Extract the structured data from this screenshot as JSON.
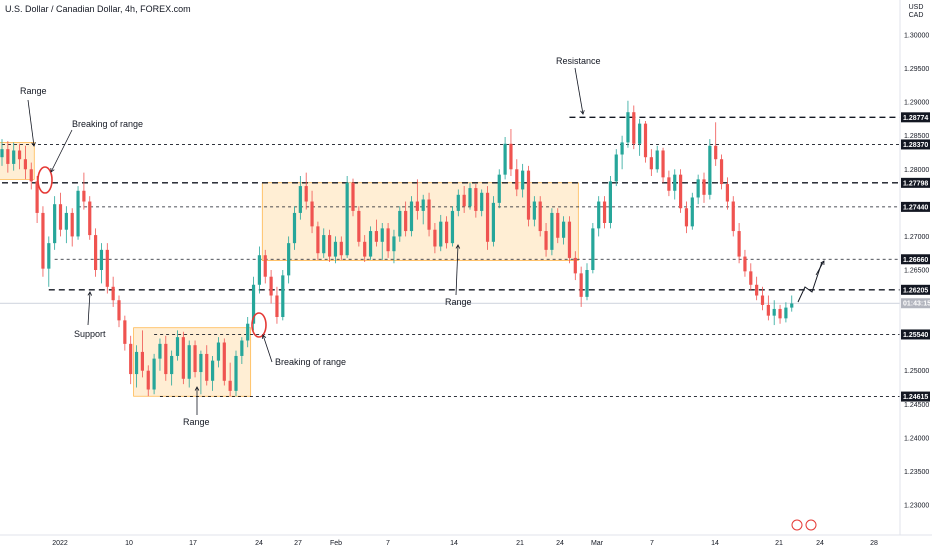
{
  "chart_title": "U.S. Dollar / Canadian Dollar, 4h, FOREX.com",
  "currency_badge": {
    "top": "USD",
    "bottom": "CAD"
  },
  "price_now_label": "01:43:15",
  "chart_data": {
    "type": "candlestick",
    "symbol": "USDCAD",
    "timeframe": "4h",
    "x_labels": [
      "2022",
      "10",
      "17",
      "24",
      "27",
      "Feb",
      "7",
      "14",
      "21",
      "24",
      "Mar",
      "7",
      "14",
      "21",
      "24",
      "28"
    ],
    "y_ticks": [
      "1.30000",
      "1.29500",
      "1.29000",
      "1.28500",
      "1.28000",
      "1.27500",
      "1.27000",
      "1.26500",
      "1.26000",
      "1.25500",
      "1.25000",
      "1.24500",
      "1.24000",
      "1.23500",
      "1.23000"
    ],
    "ylim": [
      1.2265,
      1.3054
    ],
    "current_price": 1.26005,
    "levels": [
      {
        "value": 1.28774,
        "label": "1.28774",
        "style": "dashed-bold"
      },
      {
        "value": 1.2837,
        "label": "1.28370",
        "style": "dashed"
      },
      {
        "value": 1.27798,
        "label": "1.27798",
        "style": "dashed-bold"
      },
      {
        "value": 1.2744,
        "label": "1.27440",
        "style": "dashed"
      },
      {
        "value": 1.2666,
        "label": "1.26660",
        "style": "dashed"
      },
      {
        "value": 1.26205,
        "label": "1.26205",
        "style": "dashed-bold"
      },
      {
        "value": 1.2554,
        "label": "1.25540",
        "style": "dashed"
      },
      {
        "value": 1.24615,
        "label": "1.24615",
        "style": "dashed"
      }
    ],
    "range_zones": [
      {
        "x_start": 0,
        "x_end": 5,
        "low": 1.2785,
        "high": 1.284
      },
      {
        "x_start": 23,
        "x_end": 42,
        "low": 1.2462,
        "high": 1.2564
      },
      {
        "x_start": 45,
        "x_end": 98,
        "low": 1.2664,
        "high": 1.278
      }
    ],
    "annotations": [
      {
        "text": "Range"
      },
      {
        "text": "Breaking of range"
      },
      {
        "text": "Support"
      },
      {
        "text": "Range"
      },
      {
        "text": "Breaking of range"
      },
      {
        "text": "Range"
      },
      {
        "text": "Resistance"
      }
    ],
    "series": [
      {
        "x": 0,
        "o": 1.2818,
        "h": 1.2845,
        "l": 1.2805,
        "c": 1.283
      },
      {
        "x": 1,
        "o": 1.283,
        "h": 1.2842,
        "l": 1.2795,
        "c": 1.2808
      },
      {
        "x": 2,
        "o": 1.2808,
        "h": 1.284,
        "l": 1.2798,
        "c": 1.2828
      },
      {
        "x": 3,
        "o": 1.2828,
        "h": 1.2838,
        "l": 1.28,
        "c": 1.2815
      },
      {
        "x": 4,
        "o": 1.2815,
        "h": 1.2835,
        "l": 1.2785,
        "c": 1.28
      },
      {
        "x": 5,
        "o": 1.28,
        "h": 1.281,
        "l": 1.277,
        "c": 1.2782
      },
      {
        "x": 6,
        "o": 1.2782,
        "h": 1.279,
        "l": 1.272,
        "c": 1.2735
      },
      {
        "x": 7,
        "o": 1.2735,
        "h": 1.2745,
        "l": 1.264,
        "c": 1.2652
      },
      {
        "x": 8,
        "o": 1.2652,
        "h": 1.27,
        "l": 1.2625,
        "c": 1.269
      },
      {
        "x": 9,
        "o": 1.269,
        "h": 1.276,
        "l": 1.268,
        "c": 1.2748
      },
      {
        "x": 10,
        "o": 1.2748,
        "h": 1.2765,
        "l": 1.27,
        "c": 1.271
      },
      {
        "x": 11,
        "o": 1.271,
        "h": 1.2745,
        "l": 1.269,
        "c": 1.2735
      },
      {
        "x": 12,
        "o": 1.2735,
        "h": 1.2742,
        "l": 1.2685,
        "c": 1.27
      },
      {
        "x": 13,
        "o": 1.27,
        "h": 1.2775,
        "l": 1.2695,
        "c": 1.2768
      },
      {
        "x": 14,
        "o": 1.2768,
        "h": 1.2795,
        "l": 1.274,
        "c": 1.2752
      },
      {
        "x": 15,
        "o": 1.2752,
        "h": 1.276,
        "l": 1.2695,
        "c": 1.2702
      },
      {
        "x": 16,
        "o": 1.2702,
        "h": 1.2712,
        "l": 1.264,
        "c": 1.265
      },
      {
        "x": 17,
        "o": 1.265,
        "h": 1.269,
        "l": 1.263,
        "c": 1.268
      },
      {
        "x": 18,
        "o": 1.268,
        "h": 1.269,
        "l": 1.2615,
        "c": 1.2625
      },
      {
        "x": 19,
        "o": 1.2625,
        "h": 1.264,
        "l": 1.2595,
        "c": 1.2605
      },
      {
        "x": 20,
        "o": 1.2605,
        "h": 1.2612,
        "l": 1.2565,
        "c": 1.2575
      },
      {
        "x": 21,
        "o": 1.2575,
        "h": 1.2582,
        "l": 1.253,
        "c": 1.254
      },
      {
        "x": 22,
        "o": 1.254,
        "h": 1.2552,
        "l": 1.248,
        "c": 1.2495
      },
      {
        "x": 23,
        "o": 1.2495,
        "h": 1.2538,
        "l": 1.2475,
        "c": 1.2528
      },
      {
        "x": 24,
        "o": 1.2528,
        "h": 1.256,
        "l": 1.249,
        "c": 1.25
      },
      {
        "x": 25,
        "o": 1.25,
        "h": 1.2508,
        "l": 1.2462,
        "c": 1.2472
      },
      {
        "x": 26,
        "o": 1.2472,
        "h": 1.2525,
        "l": 1.2465,
        "c": 1.2518
      },
      {
        "x": 27,
        "o": 1.2518,
        "h": 1.2548,
        "l": 1.25,
        "c": 1.254
      },
      {
        "x": 28,
        "o": 1.254,
        "h": 1.2552,
        "l": 1.2485,
        "c": 1.2495
      },
      {
        "x": 29,
        "o": 1.2495,
        "h": 1.253,
        "l": 1.2478,
        "c": 1.2522
      },
      {
        "x": 30,
        "o": 1.2522,
        "h": 1.256,
        "l": 1.2515,
        "c": 1.255
      },
      {
        "x": 31,
        "o": 1.255,
        "h": 1.2558,
        "l": 1.248,
        "c": 1.2488
      },
      {
        "x": 32,
        "o": 1.2488,
        "h": 1.2545,
        "l": 1.2475,
        "c": 1.2538
      },
      {
        "x": 33,
        "o": 1.2538,
        "h": 1.2545,
        "l": 1.249,
        "c": 1.2498
      },
      {
        "x": 34,
        "o": 1.2498,
        "h": 1.253,
        "l": 1.2465,
        "c": 1.2525
      },
      {
        "x": 35,
        "o": 1.2525,
        "h": 1.2538,
        "l": 1.2478,
        "c": 1.2485
      },
      {
        "x": 36,
        "o": 1.2485,
        "h": 1.2522,
        "l": 1.247,
        "c": 1.2515
      },
      {
        "x": 37,
        "o": 1.2515,
        "h": 1.255,
        "l": 1.2505,
        "c": 1.2542
      },
      {
        "x": 38,
        "o": 1.2542,
        "h": 1.2548,
        "l": 1.2478,
        "c": 1.2485
      },
      {
        "x": 39,
        "o": 1.2485,
        "h": 1.2512,
        "l": 1.2462,
        "c": 1.247
      },
      {
        "x": 40,
        "o": 1.247,
        "h": 1.253,
        "l": 1.2462,
        "c": 1.2522
      },
      {
        "x": 41,
        "o": 1.2522,
        "h": 1.255,
        "l": 1.251,
        "c": 1.2545
      },
      {
        "x": 42,
        "o": 1.2545,
        "h": 1.258,
        "l": 1.2535,
        "c": 1.257
      },
      {
        "x": 43,
        "o": 1.257,
        "h": 1.264,
        "l": 1.256,
        "c": 1.2628
      },
      {
        "x": 44,
        "o": 1.2628,
        "h": 1.2685,
        "l": 1.2615,
        "c": 1.2672
      },
      {
        "x": 45,
        "o": 1.2672,
        "h": 1.268,
        "l": 1.263,
        "c": 1.264
      },
      {
        "x": 46,
        "o": 1.264,
        "h": 1.265,
        "l": 1.26,
        "c": 1.2612
      },
      {
        "x": 47,
        "o": 1.2612,
        "h": 1.2625,
        "l": 1.257,
        "c": 1.258
      },
      {
        "x": 48,
        "o": 1.258,
        "h": 1.265,
        "l": 1.2575,
        "c": 1.2642
      },
      {
        "x": 49,
        "o": 1.2642,
        "h": 1.27,
        "l": 1.263,
        "c": 1.269
      },
      {
        "x": 50,
        "o": 1.269,
        "h": 1.2745,
        "l": 1.268,
        "c": 1.2735
      },
      {
        "x": 51,
        "o": 1.2735,
        "h": 1.279,
        "l": 1.2725,
        "c": 1.2775
      },
      {
        "x": 52,
        "o": 1.2775,
        "h": 1.2795,
        "l": 1.274,
        "c": 1.2752
      },
      {
        "x": 53,
        "o": 1.2752,
        "h": 1.2768,
        "l": 1.2705,
        "c": 1.2715
      },
      {
        "x": 54,
        "o": 1.2715,
        "h": 1.2722,
        "l": 1.2665,
        "c": 1.2675
      },
      {
        "x": 55,
        "o": 1.2675,
        "h": 1.2712,
        "l": 1.2668,
        "c": 1.2702
      },
      {
        "x": 56,
        "o": 1.2702,
        "h": 1.271,
        "l": 1.2662,
        "c": 1.267
      },
      {
        "x": 57,
        "o": 1.267,
        "h": 1.27,
        "l": 1.266,
        "c": 1.2692
      },
      {
        "x": 58,
        "o": 1.2692,
        "h": 1.27,
        "l": 1.2665,
        "c": 1.2672
      },
      {
        "x": 59,
        "o": 1.2672,
        "h": 1.279,
        "l": 1.2668,
        "c": 1.278
      },
      {
        "x": 60,
        "o": 1.278,
        "h": 1.2786,
        "l": 1.273,
        "c": 1.2738
      },
      {
        "x": 61,
        "o": 1.2738,
        "h": 1.2745,
        "l": 1.2685,
        "c": 1.2692
      },
      {
        "x": 62,
        "o": 1.2692,
        "h": 1.2702,
        "l": 1.2662,
        "c": 1.267
      },
      {
        "x": 63,
        "o": 1.267,
        "h": 1.2715,
        "l": 1.2665,
        "c": 1.2708
      },
      {
        "x": 64,
        "o": 1.2708,
        "h": 1.2725,
        "l": 1.2685,
        "c": 1.2692
      },
      {
        "x": 65,
        "o": 1.2692,
        "h": 1.272,
        "l": 1.2665,
        "c": 1.2712
      },
      {
        "x": 66,
        "o": 1.2712,
        "h": 1.272,
        "l": 1.2668,
        "c": 1.2678
      },
      {
        "x": 67,
        "o": 1.2678,
        "h": 1.271,
        "l": 1.266,
        "c": 1.27
      },
      {
        "x": 68,
        "o": 1.27,
        "h": 1.2745,
        "l": 1.2692,
        "c": 1.2738
      },
      {
        "x": 69,
        "o": 1.2738,
        "h": 1.2752,
        "l": 1.27,
        "c": 1.2708
      },
      {
        "x": 70,
        "o": 1.2708,
        "h": 1.276,
        "l": 1.27,
        "c": 1.2752
      },
      {
        "x": 71,
        "o": 1.2752,
        "h": 1.2785,
        "l": 1.2725,
        "c": 1.2738
      },
      {
        "x": 72,
        "o": 1.2738,
        "h": 1.2762,
        "l": 1.2718,
        "c": 1.2755
      },
      {
        "x": 73,
        "o": 1.2755,
        "h": 1.2765,
        "l": 1.27,
        "c": 1.271
      },
      {
        "x": 74,
        "o": 1.271,
        "h": 1.272,
        "l": 1.2675,
        "c": 1.2685
      },
      {
        "x": 75,
        "o": 1.2685,
        "h": 1.2732,
        "l": 1.2678,
        "c": 1.2722
      },
      {
        "x": 76,
        "o": 1.2722,
        "h": 1.273,
        "l": 1.2682,
        "c": 1.269
      },
      {
        "x": 77,
        "o": 1.269,
        "h": 1.2745,
        "l": 1.2685,
        "c": 1.2738
      },
      {
        "x": 78,
        "o": 1.2738,
        "h": 1.277,
        "l": 1.273,
        "c": 1.2762
      },
      {
        "x": 79,
        "o": 1.2762,
        "h": 1.2775,
        "l": 1.2735,
        "c": 1.2745
      },
      {
        "x": 80,
        "o": 1.2745,
        "h": 1.278,
        "l": 1.274,
        "c": 1.2772
      },
      {
        "x": 81,
        "o": 1.2772,
        "h": 1.2778,
        "l": 1.2728,
        "c": 1.2738
      },
      {
        "x": 82,
        "o": 1.2738,
        "h": 1.277,
        "l": 1.273,
        "c": 1.2765
      },
      {
        "x": 83,
        "o": 1.2765,
        "h": 1.2775,
        "l": 1.268,
        "c": 1.2692
      },
      {
        "x": 84,
        "o": 1.2692,
        "h": 1.276,
        "l": 1.2685,
        "c": 1.275
      },
      {
        "x": 85,
        "o": 1.275,
        "h": 1.28,
        "l": 1.2742,
        "c": 1.2792
      },
      {
        "x": 86,
        "o": 1.2792,
        "h": 1.2848,
        "l": 1.2785,
        "c": 1.2838
      },
      {
        "x": 87,
        "o": 1.2838,
        "h": 1.286,
        "l": 1.279,
        "c": 1.28
      },
      {
        "x": 88,
        "o": 1.28,
        "h": 1.2815,
        "l": 1.276,
        "c": 1.277
      },
      {
        "x": 89,
        "o": 1.277,
        "h": 1.2808,
        "l": 1.2758,
        "c": 1.2798
      },
      {
        "x": 90,
        "o": 1.2798,
        "h": 1.2805,
        "l": 1.2715,
        "c": 1.2725
      },
      {
        "x": 91,
        "o": 1.2725,
        "h": 1.276,
        "l": 1.2715,
        "c": 1.2752
      },
      {
        "x": 92,
        "o": 1.2752,
        "h": 1.276,
        "l": 1.27,
        "c": 1.2708
      },
      {
        "x": 93,
        "o": 1.2708,
        "h": 1.272,
        "l": 1.267,
        "c": 1.268
      },
      {
        "x": 94,
        "o": 1.268,
        "h": 1.2742,
        "l": 1.2672,
        "c": 1.2735
      },
      {
        "x": 95,
        "o": 1.2735,
        "h": 1.2742,
        "l": 1.269,
        "c": 1.2698
      },
      {
        "x": 96,
        "o": 1.2698,
        "h": 1.273,
        "l": 1.2688,
        "c": 1.2722
      },
      {
        "x": 97,
        "o": 1.2722,
        "h": 1.273,
        "l": 1.266,
        "c": 1.2668
      },
      {
        "x": 98,
        "o": 1.2668,
        "h": 1.2678,
        "l": 1.2635,
        "c": 1.2645
      },
      {
        "x": 99,
        "o": 1.2645,
        "h": 1.2655,
        "l": 1.2595,
        "c": 1.261
      },
      {
        "x": 100,
        "o": 1.261,
        "h": 1.266,
        "l": 1.2605,
        "c": 1.265
      },
      {
        "x": 101,
        "o": 1.265,
        "h": 1.272,
        "l": 1.2645,
        "c": 1.2712
      },
      {
        "x": 102,
        "o": 1.2712,
        "h": 1.276,
        "l": 1.27,
        "c": 1.2752
      },
      {
        "x": 103,
        "o": 1.2752,
        "h": 1.276,
        "l": 1.2712,
        "c": 1.272
      },
      {
        "x": 104,
        "o": 1.272,
        "h": 1.279,
        "l": 1.2712,
        "c": 1.2782
      },
      {
        "x": 105,
        "o": 1.2782,
        "h": 1.283,
        "l": 1.2775,
        "c": 1.2822
      },
      {
        "x": 106,
        "o": 1.2822,
        "h": 1.285,
        "l": 1.28,
        "c": 1.284
      },
      {
        "x": 107,
        "o": 1.284,
        "h": 1.2902,
        "l": 1.2832,
        "c": 1.2885
      },
      {
        "x": 108,
        "o": 1.2885,
        "h": 1.2895,
        "l": 1.283,
        "c": 1.2838
      },
      {
        "x": 109,
        "o": 1.2838,
        "h": 1.2875,
        "l": 1.282,
        "c": 1.2868
      },
      {
        "x": 110,
        "o": 1.2868,
        "h": 1.2872,
        "l": 1.281,
        "c": 1.2818
      },
      {
        "x": 111,
        "o": 1.2818,
        "h": 1.283,
        "l": 1.279,
        "c": 1.28
      },
      {
        "x": 112,
        "o": 1.28,
        "h": 1.2835,
        "l": 1.2795,
        "c": 1.2828
      },
      {
        "x": 113,
        "o": 1.2828,
        "h": 1.2832,
        "l": 1.278,
        "c": 1.2788
      },
      {
        "x": 114,
        "o": 1.2788,
        "h": 1.2798,
        "l": 1.276,
        "c": 1.2768
      },
      {
        "x": 115,
        "o": 1.2768,
        "h": 1.28,
        "l": 1.2755,
        "c": 1.2792
      },
      {
        "x": 116,
        "o": 1.2792,
        "h": 1.28,
        "l": 1.2735,
        "c": 1.2742
      },
      {
        "x": 117,
        "o": 1.2742,
        "h": 1.2752,
        "l": 1.2705,
        "c": 1.2715
      },
      {
        "x": 118,
        "o": 1.2715,
        "h": 1.2765,
        "l": 1.271,
        "c": 1.2758
      },
      {
        "x": 119,
        "o": 1.2758,
        "h": 1.2792,
        "l": 1.2748,
        "c": 1.2785
      },
      {
        "x": 120,
        "o": 1.2785,
        "h": 1.2795,
        "l": 1.275,
        "c": 1.2762
      },
      {
        "x": 121,
        "o": 1.2762,
        "h": 1.2845,
        "l": 1.2755,
        "c": 1.2835
      },
      {
        "x": 122,
        "o": 1.2835,
        "h": 1.287,
        "l": 1.2805,
        "c": 1.2815
      },
      {
        "x": 123,
        "o": 1.2815,
        "h": 1.2822,
        "l": 1.277,
        "c": 1.2778
      },
      {
        "x": 124,
        "o": 1.2778,
        "h": 1.2788,
        "l": 1.274,
        "c": 1.2752
      },
      {
        "x": 125,
        "o": 1.2752,
        "h": 1.276,
        "l": 1.27,
        "c": 1.2708
      },
      {
        "x": 126,
        "o": 1.2708,
        "h": 1.272,
        "l": 1.266,
        "c": 1.267
      },
      {
        "x": 127,
        "o": 1.267,
        "h": 1.268,
        "l": 1.264,
        "c": 1.2648
      },
      {
        "x": 128,
        "o": 1.2648,
        "h": 1.266,
        "l": 1.262,
        "c": 1.2628
      },
      {
        "x": 129,
        "o": 1.2628,
        "h": 1.264,
        "l": 1.2605,
        "c": 1.2612
      },
      {
        "x": 130,
        "o": 1.2612,
        "h": 1.2625,
        "l": 1.259,
        "c": 1.2598
      },
      {
        "x": 131,
        "o": 1.2598,
        "h": 1.2612,
        "l": 1.2575,
        "c": 1.2582
      },
      {
        "x": 132,
        "o": 1.2582,
        "h": 1.2605,
        "l": 1.2568,
        "c": 1.2592
      },
      {
        "x": 133,
        "o": 1.2592,
        "h": 1.2598,
        "l": 1.257,
        "c": 1.2578
      },
      {
        "x": 134,
        "o": 1.2578,
        "h": 1.2602,
        "l": 1.2572,
        "c": 1.2594
      },
      {
        "x": 135,
        "o": 1.2594,
        "h": 1.2612,
        "l": 1.2588,
        "c": 1.26
      }
    ]
  }
}
